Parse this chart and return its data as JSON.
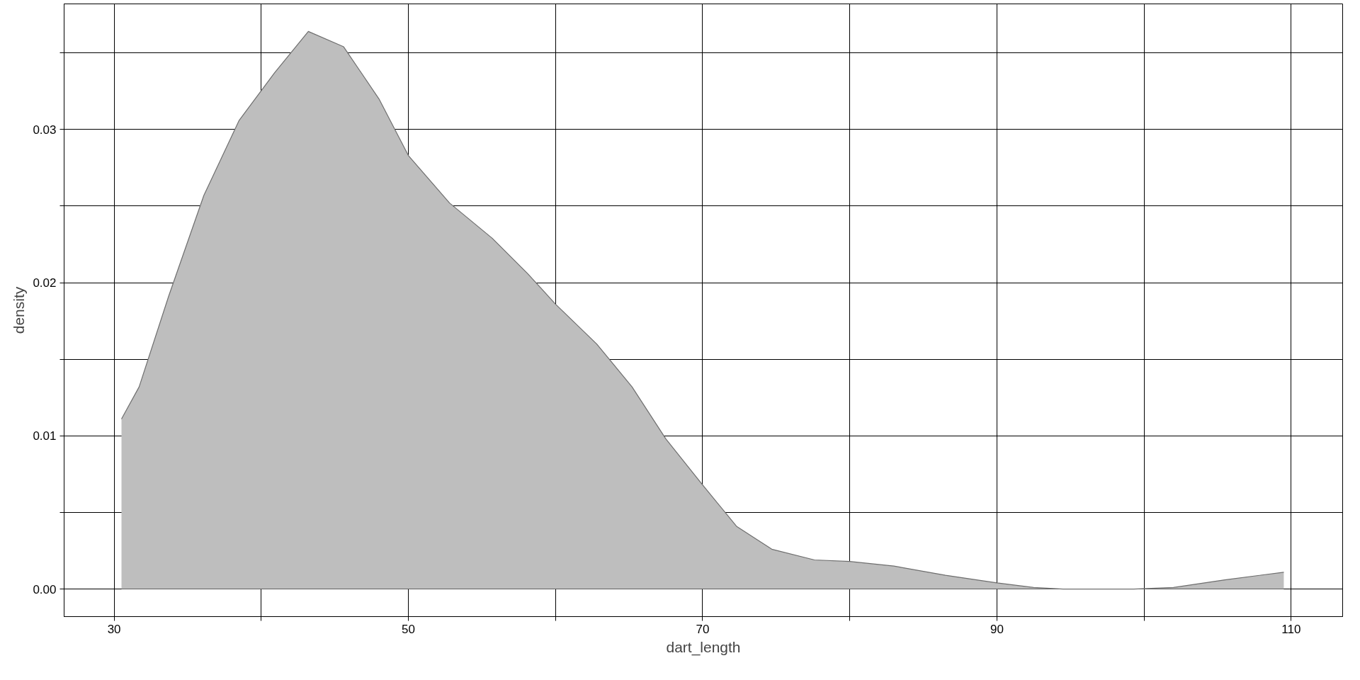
{
  "chart_data": {
    "type": "area",
    "xlabel": "dart_length",
    "ylabel": "density",
    "x": [
      30.5,
      31.7,
      33.7,
      36.1,
      38.5,
      40.9,
      43.2,
      45.6,
      48.0,
      50.0,
      52.8,
      55.7,
      58.1,
      60.0,
      62.8,
      65.2,
      67.5,
      70.0,
      72.3,
      74.7,
      77.6,
      80.0,
      83.0,
      86.5,
      90.0,
      92.5,
      94.5,
      99.3,
      102.0,
      105.5,
      109.5
    ],
    "series": [
      {
        "color": "#bebebe",
        "values": [
          0.0111,
          0.0132,
          0.0191,
          0.0257,
          0.0306,
          0.0337,
          0.0364,
          0.0354,
          0.032,
          0.0283,
          0.0252,
          0.0229,
          0.0206,
          0.0186,
          0.016,
          0.0132,
          0.0098,
          0.0068,
          0.0041,
          0.0026,
          0.0019,
          0.0018,
          0.0015,
          0.0009,
          0.0004,
          0.0001,
          0.0,
          0.0,
          0.0001,
          0.0006,
          0.0011
        ]
      }
    ],
    "xlim": [
      26.6,
      113.5
    ],
    "ylim": [
      -0.0018,
      0.0382
    ],
    "xticks": [
      30,
      {
        "value": 40,
        "label": null
      },
      50,
      {
        "value": 60,
        "label": null
      },
      70,
      {
        "value": 80,
        "label": null
      },
      90,
      {
        "value": 100,
        "label": null
      },
      110
    ],
    "yticks": [
      {
        "value": 0,
        "label": "0.00"
      },
      {
        "value": 0.005,
        "label": null
      },
      {
        "value": 0.01,
        "label": "0.01"
      },
      {
        "value": 0.015,
        "label": null
      },
      {
        "value": 0.02,
        "label": "0.02"
      },
      {
        "value": 0.025,
        "label": null
      },
      {
        "value": 0.03,
        "label": "0.03"
      },
      {
        "value": 0.035,
        "label": null
      }
    ],
    "grid": true
  }
}
